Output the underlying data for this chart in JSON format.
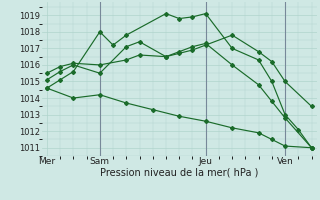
{
  "bg_color": "#cfe8e4",
  "grid_color": "#b0d4cc",
  "line_color": "#1a6b2a",
  "marker_color": "#1a6b2a",
  "xlabel": "Pression niveau de la mer( hPa )",
  "ylim": [
    1010.5,
    1019.8
  ],
  "yticks": [
    1011,
    1012,
    1013,
    1014,
    1015,
    1016,
    1017,
    1018,
    1019
  ],
  "xtick_labels": [
    "Mer",
    "Sam",
    "Jeu",
    "Ven"
  ],
  "xtick_positions": [
    0,
    2,
    6,
    9
  ],
  "series": [
    [
      1014.6,
      1015.1,
      1015.6,
      1018.0,
      1017.2,
      1017.8,
      1019.1,
      1018.8,
      1018.9,
      1019.1,
      1017.0,
      1016.3,
      1015.0,
      1013.0,
      1012.1,
      1011.0
    ],
    [
      1015.1,
      1015.6,
      1016.0,
      1015.5,
      1017.1,
      1017.4,
      1016.5,
      1016.8,
      1017.1,
      1017.3,
      1016.0,
      1014.8,
      1013.8,
      1012.8,
      1011.0
    ],
    [
      1015.5,
      1015.9,
      1016.1,
      1016.0,
      1016.3,
      1016.6,
      1016.5,
      1016.7,
      1016.9,
      1017.2,
      1017.8,
      1016.8,
      1016.2,
      1015.0,
      1013.5
    ],
    [
      1014.6,
      1014.0,
      1014.2,
      1013.7,
      1013.3,
      1012.9,
      1012.6,
      1012.2,
      1011.9,
      1011.5,
      1011.1,
      1011.0
    ]
  ],
  "x_series": [
    [
      0,
      0.5,
      1,
      2,
      2.5,
      3,
      4.5,
      5,
      5.5,
      6,
      7,
      8,
      8.5,
      9,
      9.5,
      10
    ],
    [
      0,
      0.5,
      1,
      2,
      3,
      3.5,
      4.5,
      5,
      5.5,
      6,
      7,
      8,
      8.5,
      9,
      10
    ],
    [
      0,
      0.5,
      1,
      2,
      3,
      3.5,
      4.5,
      5,
      5.5,
      6,
      7,
      8,
      8.5,
      9,
      10
    ],
    [
      0,
      1,
      2,
      3,
      4,
      5,
      6,
      7,
      8,
      8.5,
      9,
      10
    ]
  ],
  "xlim": [
    -0.2,
    10.2
  ],
  "vlines": [
    2,
    6,
    9
  ],
  "vline_color": "#778899",
  "xlabel_fontsize": 7,
  "ytick_fontsize": 6,
  "xtick_fontsize": 6.5
}
